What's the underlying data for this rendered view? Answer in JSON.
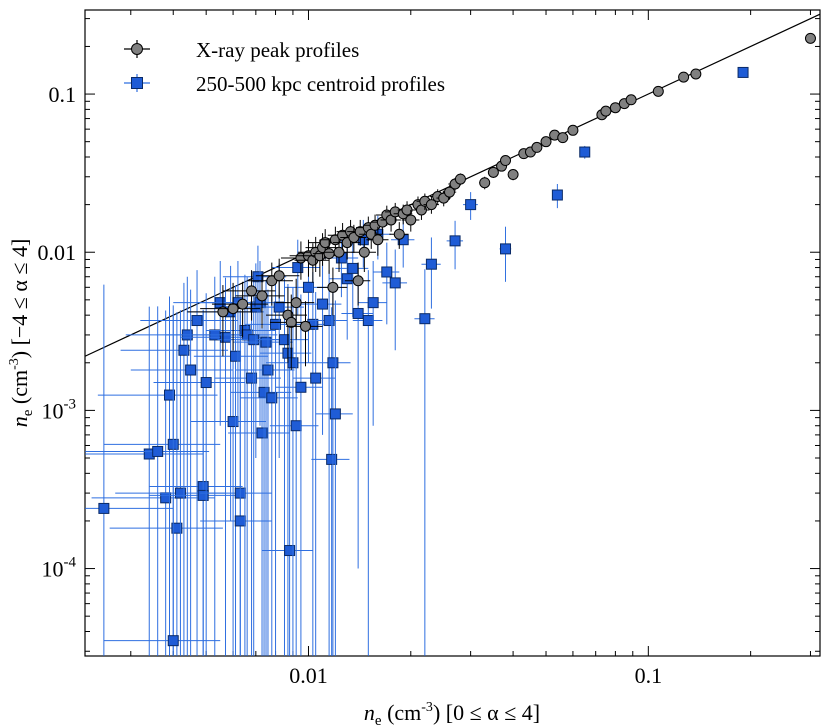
{
  "chart_data": {
    "type": "scatter",
    "xscale": "log",
    "yscale": "log",
    "xlim": [
      0.0022,
      0.32
    ],
    "ylim": [
      2.8e-05,
      0.34
    ],
    "xlabel": {
      "main": "n",
      "sub": "e",
      "unit_pre": " (cm",
      "sup": "-3",
      "unit_post": ") [0 ≤ α ≤ 4]"
    },
    "ylabel": {
      "main": "n",
      "sub": "e",
      "unit_pre": " (cm",
      "sup": "-3",
      "unit_post": ") [−4 ≤ α ≤ 4]"
    },
    "xticks": [
      {
        "value": 0.01,
        "label": "0.01"
      },
      {
        "value": 0.1,
        "label": "0.1"
      }
    ],
    "yticks": [
      {
        "value": 0.1,
        "label": "0.1",
        "base": "",
        "exp": ""
      },
      {
        "value": 0.01,
        "label": "0.01",
        "base": "",
        "exp": ""
      },
      {
        "value": 0.001,
        "label": "",
        "base": "10",
        "exp": "-3"
      },
      {
        "value": 0.0001,
        "label": "",
        "base": "10",
        "exp": "-4"
      }
    ],
    "reference_line": {
      "type": "one-to-one",
      "points": [
        [
          0.002,
          0.002
        ],
        [
          0.32,
          0.32
        ]
      ]
    },
    "legend": {
      "placement": "top-left"
    },
    "series": [
      {
        "name": "X-ray peak profiles",
        "marker": "circle",
        "color": "#808080",
        "errcolor": "#000000",
        "points": [
          [
            0.0056,
            0.0042,
            0.0012,
            0.002
          ],
          [
            0.006,
            0.0044,
            0.0012,
            0.002
          ],
          [
            0.0064,
            0.0047,
            0.0012,
            0.0018
          ],
          [
            0.0068,
            0.0057,
            0.0012,
            0.002
          ],
          [
            0.0073,
            0.0053,
            0.0012,
            0.002
          ],
          [
            0.0078,
            0.0066,
            0.0012,
            0.002
          ],
          [
            0.0082,
            0.0071,
            0.0012,
            0.002
          ],
          [
            0.0087,
            0.004,
            0.0012,
            0.002
          ],
          [
            0.0089,
            0.0036,
            0.0012,
            0.0018
          ],
          [
            0.0092,
            0.0048,
            0.0012,
            0.002
          ],
          [
            0.0095,
            0.0092,
            0.0012,
            0.0025
          ],
          [
            0.0098,
            0.0034,
            0.0012,
            0.0015
          ],
          [
            0.01,
            0.0095,
            0.0012,
            0.0025
          ],
          [
            0.0103,
            0.0089,
            0.0012,
            0.0025
          ],
          [
            0.0105,
            0.01,
            0.0012,
            0.0025
          ],
          [
            0.0108,
            0.0095,
            0.0012,
            0.0025
          ],
          [
            0.011,
            0.0107,
            0.0012,
            0.0025
          ],
          [
            0.0112,
            0.0115,
            0.0012,
            0.0025
          ],
          [
            0.0115,
            0.0098,
            0.0012,
            0.0025
          ],
          [
            0.0118,
            0.006,
            0.0012,
            0.002
          ],
          [
            0.012,
            0.012,
            0.0012,
            0.0025
          ],
          [
            0.0123,
            0.01,
            0.0012,
            0.0025
          ],
          [
            0.0126,
            0.0128,
            0.0012,
            0.0025
          ],
          [
            0.013,
            0.0115,
            0.0012,
            0.0025
          ],
          [
            0.0133,
            0.0135,
            0.0012,
            0.0025
          ],
          [
            0.0136,
            0.0124,
            0.0012,
            0.0025
          ],
          [
            0.014,
            0.0066,
            0.0012,
            0.002
          ],
          [
            0.0142,
            0.0135,
            0.0012,
            0.0025
          ],
          [
            0.0146,
            0.01,
            0.0012,
            0.0025
          ],
          [
            0.015,
            0.0143,
            0.0012,
            0.0025
          ],
          [
            0.0153,
            0.013,
            0.0012,
            0.0025
          ],
          [
            0.0157,
            0.0148,
            0.0012,
            0.0025
          ],
          [
            0.016,
            0.012,
            0.0012,
            0.0025
          ],
          [
            0.0165,
            0.0155,
            0.0012,
            0.0025
          ],
          [
            0.017,
            0.0172,
            0.0012,
            0.0025
          ],
          [
            0.0175,
            0.016,
            0.0012,
            0.0025
          ],
          [
            0.018,
            0.018,
            0.0012,
            0.0025
          ],
          [
            0.0185,
            0.013,
            0.0012,
            0.0025
          ],
          [
            0.019,
            0.0175,
            0.0012,
            0.0025
          ],
          [
            0.0195,
            0.0185,
            0.0012,
            0.0025
          ],
          [
            0.02,
            0.016,
            0.0012,
            0.0025
          ],
          [
            0.021,
            0.02,
            0.0012,
            0.0025
          ],
          [
            0.0215,
            0.0185,
            0.0012,
            0.0025
          ],
          [
            0.022,
            0.021,
            0.0012,
            0.0025
          ],
          [
            0.023,
            0.02,
            0.0012,
            0.0025
          ],
          [
            0.024,
            0.0225,
            0.0012,
            0.0025
          ],
          [
            0.025,
            0.022,
            0.0012,
            0.0025
          ],
          [
            0.026,
            0.024,
            0.0012,
            0.0025
          ],
          [
            0.027,
            0.027,
            0.0012,
            0.0025
          ],
          [
            0.028,
            0.029,
            0.0012,
            0.0025
          ],
          [
            0.033,
            0.0275,
            0.0012,
            0.0025
          ],
          [
            0.035,
            0.032,
            0.0012,
            0.0025
          ],
          [
            0.037,
            0.035,
            0.0012,
            0.0025
          ],
          [
            0.038,
            0.038,
            0.0012,
            0.0025
          ],
          [
            0.04,
            0.031,
            0.0012,
            0.0025
          ],
          [
            0.043,
            0.042,
            0.0012,
            0.0025
          ],
          [
            0.045,
            0.043,
            0.0012,
            0.0025
          ],
          [
            0.047,
            0.046,
            0.0012,
            0.0025
          ],
          [
            0.05,
            0.05,
            0.0012,
            0.0025
          ],
          [
            0.053,
            0.055,
            0.0012,
            0.0025
          ],
          [
            0.056,
            0.053,
            0.0012,
            0.0025
          ],
          [
            0.06,
            0.059,
            0.0012,
            0.0025
          ],
          [
            0.073,
            0.074,
            0.0015,
            0.003
          ],
          [
            0.075,
            0.078,
            0.0015,
            0.003
          ],
          [
            0.08,
            0.082,
            0.0015,
            0.003
          ],
          [
            0.085,
            0.087,
            0.0015,
            0.003
          ],
          [
            0.089,
            0.092,
            0.0015,
            0.003
          ],
          [
            0.107,
            0.104,
            0.0015,
            0.003
          ],
          [
            0.127,
            0.128,
            0.002,
            0.004
          ],
          [
            0.138,
            0.134,
            0.002,
            0.004
          ],
          [
            0.3,
            0.225,
            0.0,
            0.0
          ]
        ]
      },
      {
        "name": "250-500 kpc centroid profiles",
        "marker": "square",
        "color": "#1f5cd6",
        "errcolor": "#2f6fe0",
        "points": [
          [
            0.0025,
            0.00024,
            0.0015,
            0.006
          ],
          [
            0.0034,
            0.00053,
            0.0015,
            0.004
          ],
          [
            0.0036,
            0.00055,
            0.0015,
            0.004
          ],
          [
            0.0038,
            0.00028,
            0.0015,
            0.004
          ],
          [
            0.0039,
            0.00125,
            0.0015,
            0.004
          ],
          [
            0.004,
            0.00061,
            0.0015,
            0.004
          ],
          [
            0.0041,
            0.00018,
            0.0015,
            0.004
          ],
          [
            0.0042,
            0.0003,
            0.0015,
            0.004
          ],
          [
            0.004,
            3.5e-05,
            0.0015,
            0.004
          ],
          [
            0.0043,
            0.0024,
            0.0015,
            0.004
          ],
          [
            0.0044,
            0.003,
            0.0015,
            0.004
          ],
          [
            0.0045,
            0.0018,
            0.0015,
            0.004
          ],
          [
            0.0047,
            0.0037,
            0.0015,
            0.004
          ],
          [
            0.0049,
            0.00033,
            0.0015,
            0.004
          ],
          [
            0.0049,
            0.00029,
            0.0015,
            0.004
          ],
          [
            0.005,
            0.0015,
            0.0015,
            0.004
          ],
          [
            0.0053,
            0.003,
            0.0015,
            0.004
          ],
          [
            0.0055,
            0.0048,
            0.0015,
            0.004
          ],
          [
            0.0057,
            0.0029,
            0.0015,
            0.004
          ],
          [
            0.0059,
            0.0042,
            0.0015,
            0.004
          ],
          [
            0.006,
            0.00085,
            0.0015,
            0.004
          ],
          [
            0.0061,
            0.0022,
            0.0015,
            0.004
          ],
          [
            0.0062,
            0.0048,
            0.0015,
            0.004
          ],
          [
            0.0063,
            0.0003,
            0.0015,
            0.004
          ],
          [
            0.0063,
            0.0002,
            0.0015,
            0.004
          ],
          [
            0.0065,
            0.0032,
            0.0015,
            0.004
          ],
          [
            0.0066,
            0.003,
            0.0015,
            0.004
          ],
          [
            0.0068,
            0.0016,
            0.0015,
            0.004
          ],
          [
            0.0069,
            0.0028,
            0.0015,
            0.004
          ],
          [
            0.007,
            0.0045,
            0.0015,
            0.004
          ],
          [
            0.0071,
            0.007,
            0.0015,
            0.004
          ],
          [
            0.0072,
            0.0048,
            0.0015,
            0.004
          ],
          [
            0.0073,
            0.00072,
            0.0015,
            0.004
          ],
          [
            0.0074,
            0.0013,
            0.0015,
            0.004
          ],
          [
            0.0075,
            0.0027,
            0.0015,
            0.004
          ],
          [
            0.0076,
            0.0018,
            0.0015,
            0.004
          ],
          [
            0.0078,
            0.0012,
            0.0015,
            0.004
          ],
          [
            0.008,
            0.0035,
            0.0015,
            0.004
          ],
          [
            0.0082,
            0.0045,
            0.0015,
            0.004
          ],
          [
            0.0085,
            0.0028,
            0.0015,
            0.004
          ],
          [
            0.0087,
            0.0023,
            0.0015,
            0.004
          ],
          [
            0.0088,
            0.00013,
            0.0015,
            0.004
          ],
          [
            0.009,
            0.002,
            0.0015,
            0.004
          ],
          [
            0.0092,
            0.0008,
            0.0015,
            0.004
          ],
          [
            0.0093,
            0.008,
            0.0015,
            0.004
          ],
          [
            0.0095,
            0.0014,
            0.0015,
            0.004
          ],
          [
            0.01,
            0.006,
            0.0015,
            0.004
          ],
          [
            0.0103,
            0.0035,
            0.0015,
            0.004
          ],
          [
            0.0105,
            0.0016,
            0.0015,
            0.004
          ],
          [
            0.011,
            0.0047,
            0.0015,
            0.004
          ],
          [
            0.0115,
            0.0037,
            0.0015,
            0.004
          ],
          [
            0.0117,
            0.00049,
            0.0015,
            0.004
          ],
          [
            0.0118,
            0.002,
            0.0015,
            0.004
          ],
          [
            0.012,
            0.00095,
            0.0015,
            0.004
          ],
          [
            0.0125,
            0.0092,
            0.0015,
            0.004
          ],
          [
            0.013,
            0.0068,
            0.0015,
            0.004
          ],
          [
            0.0135,
            0.0079,
            0.0015,
            0.004
          ],
          [
            0.014,
            0.0041,
            0.0015,
            0.004
          ],
          [
            0.0145,
            0.012,
            0.0015,
            0.004
          ],
          [
            0.015,
            0.0037,
            0.0015,
            0.004
          ],
          [
            0.0155,
            0.0048,
            0.0015,
            0.004
          ],
          [
            0.016,
            0.013,
            0.0015,
            0.004
          ],
          [
            0.017,
            0.0075,
            0.0015,
            0.004
          ],
          [
            0.018,
            0.0064,
            0.0015,
            0.004
          ],
          [
            0.019,
            0.012,
            0.0015,
            0.004
          ],
          [
            0.022,
            0.0038,
            0.0015,
            0.004
          ],
          [
            0.023,
            0.0084,
            0.0015,
            0.004
          ],
          [
            0.027,
            0.0118,
            0.0015,
            0.004
          ],
          [
            0.03,
            0.02,
            0.0015,
            0.004
          ],
          [
            0.038,
            0.0105,
            0.0015,
            0.004
          ],
          [
            0.054,
            0.023,
            0.0015,
            0.004
          ],
          [
            0.065,
            0.043,
            0.0015,
            0.004
          ],
          [
            0.19,
            0.137,
            0.0015,
            0.004
          ]
        ]
      }
    ]
  }
}
